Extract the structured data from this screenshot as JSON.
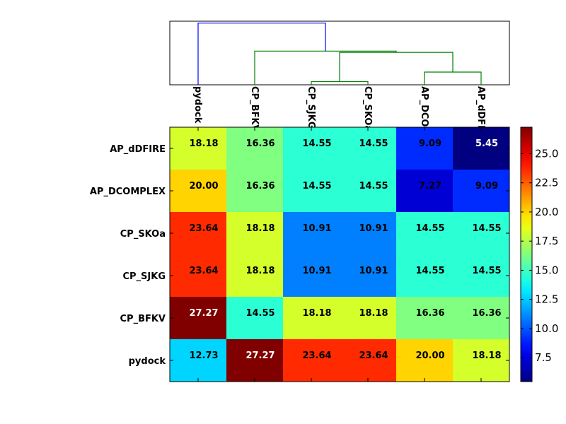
{
  "chart_data": {
    "type": "heatmap",
    "title": "",
    "xlabel": "",
    "ylabel": "",
    "colormap": "jet",
    "columns": [
      "pydock",
      "CP_BFKV",
      "CP_SJKG",
      "CP_SKOa",
      "AP_DCOMPLEX",
      "AP_dDFIRE"
    ],
    "rows": [
      "AP_dDFIRE",
      "AP_DCOMPLEX",
      "CP_SKOa",
      "CP_SJKG",
      "CP_BFKV",
      "pydock"
    ],
    "values": [
      [
        18.18,
        16.36,
        14.55,
        14.55,
        9.09,
        5.45
      ],
      [
        20.0,
        16.36,
        14.55,
        14.55,
        7.27,
        9.09
      ],
      [
        23.64,
        18.18,
        10.91,
        10.91,
        14.55,
        14.55
      ],
      [
        23.64,
        18.18,
        10.91,
        10.91,
        14.55,
        14.55
      ],
      [
        27.27,
        14.55,
        18.18,
        18.18,
        16.36,
        16.36
      ],
      [
        12.73,
        27.27,
        23.64,
        23.64,
        20.0,
        18.18
      ]
    ],
    "cell_labels": [
      [
        "18.18",
        "16.36",
        "14.55",
        "14.55",
        "9.09",
        "5.45"
      ],
      [
        "20.00",
        "16.36",
        "14.55",
        "14.55",
        "7.27",
        "9.09"
      ],
      [
        "23.64",
        "18.18",
        "10.91",
        "10.91",
        "14.55",
        "14.55"
      ],
      [
        "23.64",
        "18.18",
        "10.91",
        "10.91",
        "14.55",
        "14.55"
      ],
      [
        "27.27",
        "14.55",
        "18.18",
        "18.18",
        "16.36",
        "16.36"
      ],
      [
        "12.73",
        "27.27",
        "23.64",
        "23.64",
        "20.00",
        "18.18"
      ]
    ],
    "colorbar": {
      "min": 5.45,
      "max": 27.27,
      "ticks": [
        7.5,
        10.0,
        12.5,
        15.0,
        17.5,
        20.0,
        22.5,
        25.0
      ],
      "tick_labels": [
        "7.5",
        "10.0",
        "12.5",
        "15.0",
        "17.5",
        "20.0",
        "22.5",
        "25.0"
      ]
    },
    "dendrogram": {
      "orientation": "top",
      "leaves": [
        "pydock",
        "CP_BFKV",
        "CP_SJKG",
        "CP_SKOa",
        "AP_DCOMPLEX",
        "AP_dDFIRE"
      ],
      "links": [
        {
          "left": "AP_DCOMPLEX",
          "right": "AP_dDFIRE",
          "height": 0.2,
          "color": "#008000"
        },
        {
          "left": "CP_SJKG",
          "right": "CP_SKOa",
          "height": 0.05,
          "color": "#008000"
        },
        {
          "left": "cluster(CP_SJKG,CP_SKOa)",
          "right": "cluster(AP_DCOMPLEX,AP_dDFIRE)",
          "height": 0.51,
          "color": "#008000"
        },
        {
          "left": "CP_BFKV",
          "right": "cluster(CP_SJKG,CP_SKOa,AP_DCOMPLEX,AP_dDFIRE)",
          "height": 0.53,
          "color": "#008000"
        },
        {
          "left": "pydock",
          "right": "cluster(CP_BFKV,CP_SJKG,CP_SKOa,AP_DCOMPLEX,AP_dDFIRE)",
          "height": 0.97,
          "color": "#0000ff"
        }
      ]
    }
  }
}
